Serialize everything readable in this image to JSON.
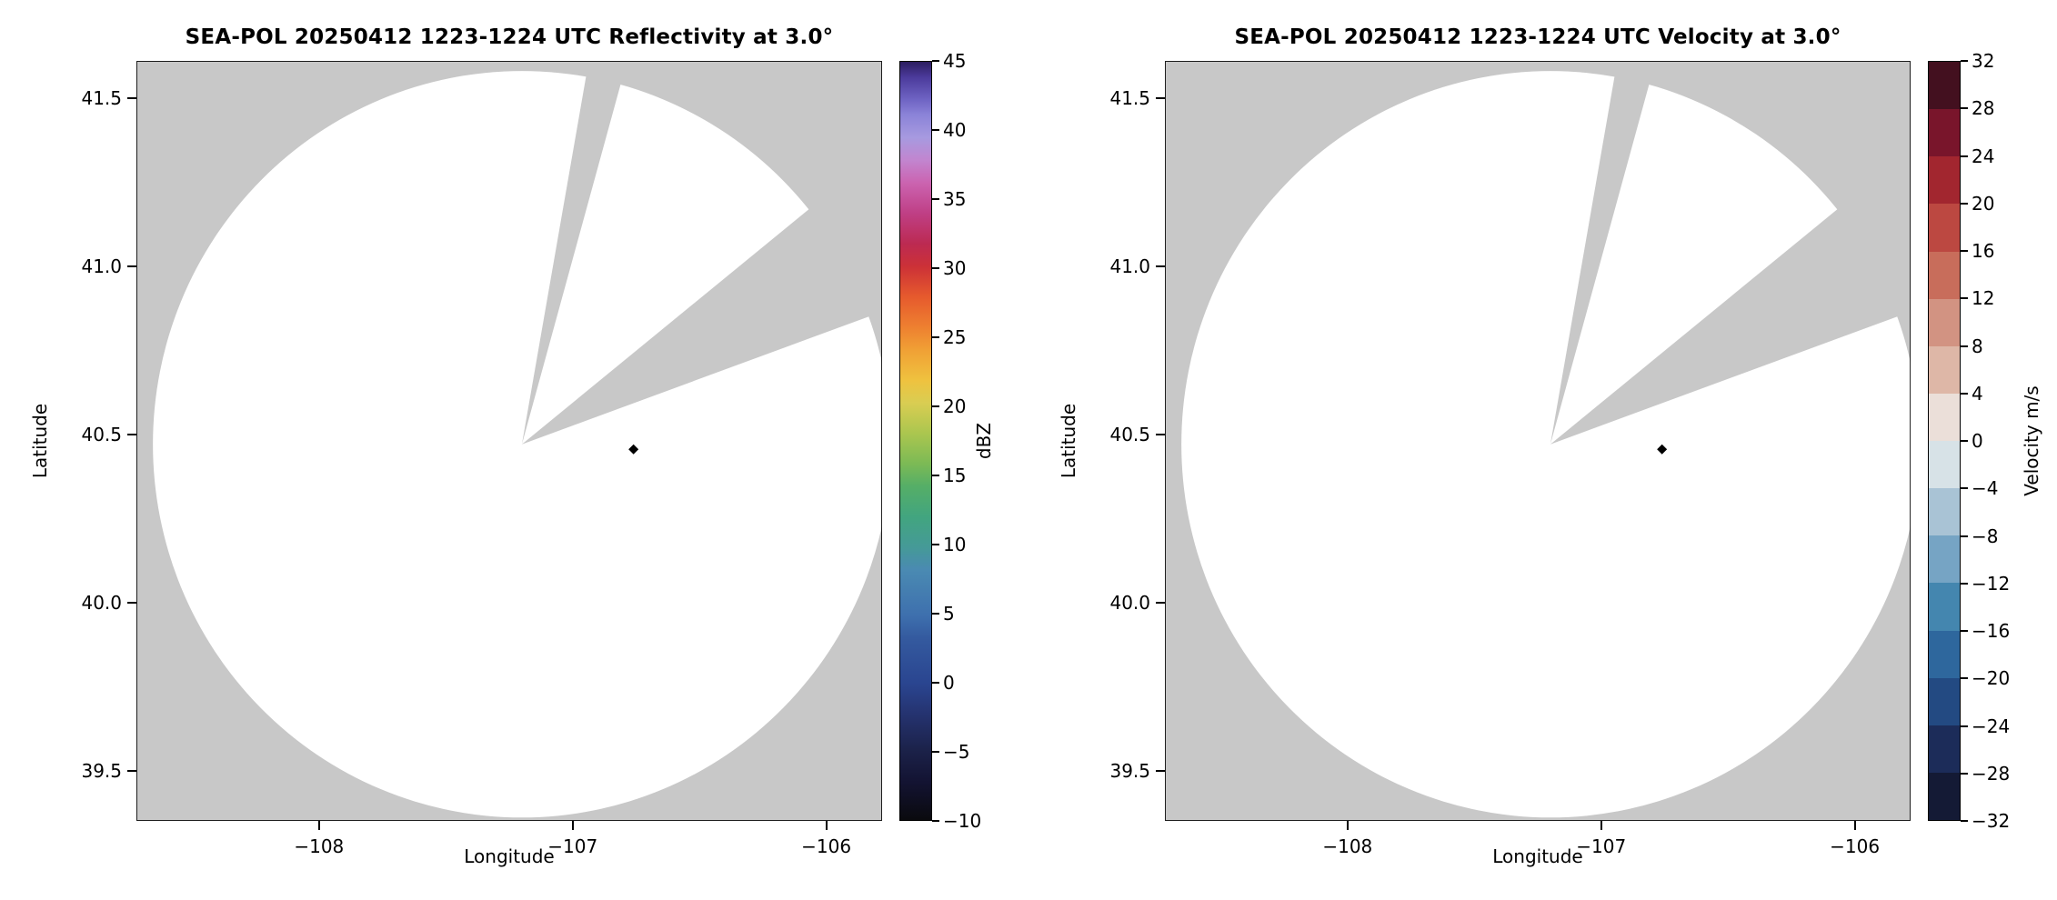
{
  "figure": {
    "background": "#ffffff",
    "description": "Two-panel radar PPI figure: reflectivity (left) and radial velocity (right)"
  },
  "chart_data": [
    {
      "id": "reflectivity",
      "type": "heatmap",
      "title": "SEA-POL 20250412 1223-1224 UTC Reflectivity at 3.0°",
      "xlabel": "Longitude",
      "ylabel": "Latitude",
      "xlim": [
        -108.72,
        -105.78
      ],
      "ylim": [
        39.35,
        41.61
      ],
      "xticks": [
        -108,
        -107,
        -106
      ],
      "xtick_labels": [
        "−108",
        "−107",
        "−106"
      ],
      "yticks": [
        41.5,
        41.0,
        40.5,
        40.0,
        39.5
      ],
      "ytick_labels": [
        "41.5",
        "41.0",
        "40.5",
        "40.0",
        "39.5"
      ],
      "grid": false,
      "radar": {
        "lon": -107.2,
        "lat": 40.47,
        "radius_lon_deg": 1.455,
        "radius_lat_deg": 1.11
      },
      "blocked_sectors_deg": [
        [
          10,
          15.5
        ],
        [
          51,
          70
        ]
      ],
      "marker": {
        "lon": -106.76,
        "lat": 40.455,
        "shape": "diamond",
        "color": "#000000"
      },
      "colors": {
        "masked": "#c8c8c8",
        "coverage": "#ffffff",
        "spine": "#000000"
      },
      "colorbar": {
        "label": "dBZ",
        "min": -10,
        "max": 45,
        "position": "right",
        "type": "continuous",
        "ticks": [
          45,
          40,
          35,
          30,
          25,
          20,
          15,
          10,
          5,
          0,
          -5,
          -10
        ],
        "tick_labels": [
          "45",
          "40",
          "35",
          "30",
          "25",
          "20",
          "15",
          "10",
          "5",
          "0",
          "−5",
          "−10"
        ],
        "stops": [
          {
            "pos": 0.0,
            "color": "#0a0a0e"
          },
          {
            "pos": 0.05,
            "color": "#131332"
          },
          {
            "pos": 0.09,
            "color": "#1b2148"
          },
          {
            "pos": 0.14,
            "color": "#253370"
          },
          {
            "pos": 0.18,
            "color": "#2a4590"
          },
          {
            "pos": 0.24,
            "color": "#345a9f"
          },
          {
            "pos": 0.27,
            "color": "#3e70ae"
          },
          {
            "pos": 0.33,
            "color": "#4a8ab2"
          },
          {
            "pos": 0.36,
            "color": "#459a97"
          },
          {
            "pos": 0.4,
            "color": "#42a57f"
          },
          {
            "pos": 0.44,
            "color": "#55ae67"
          },
          {
            "pos": 0.47,
            "color": "#7cba55"
          },
          {
            "pos": 0.51,
            "color": "#abc64f"
          },
          {
            "pos": 0.55,
            "color": "#d9cd52"
          },
          {
            "pos": 0.58,
            "color": "#efc23f"
          },
          {
            "pos": 0.62,
            "color": "#f0a035"
          },
          {
            "pos": 0.65,
            "color": "#ee8030"
          },
          {
            "pos": 0.69,
            "color": "#e65a2d"
          },
          {
            "pos": 0.73,
            "color": "#cc3137"
          },
          {
            "pos": 0.76,
            "color": "#bc2a52"
          },
          {
            "pos": 0.8,
            "color": "#bf3f85"
          },
          {
            "pos": 0.84,
            "color": "#cb63b0"
          },
          {
            "pos": 0.87,
            "color": "#c285cf"
          },
          {
            "pos": 0.9,
            "color": "#a79ae0"
          },
          {
            "pos": 0.93,
            "color": "#8b83d8"
          },
          {
            "pos": 0.95,
            "color": "#6f64c4"
          },
          {
            "pos": 0.98,
            "color": "#4b3a9b"
          },
          {
            "pos": 1.0,
            "color": "#2c1d60"
          }
        ]
      },
      "echoes": [],
      "note": "No reflectivity echoes above threshold; scan coverage circle rendered white, masked background and two blocked azimuth sectors rendered gray; black diamond marks a site at approx (-106.76, 40.455)."
    },
    {
      "id": "velocity",
      "type": "heatmap",
      "title": "SEA-POL 20250412 1223-1224 UTC Velocity at 3.0°",
      "xlabel": "Longitude",
      "ylabel": "Latitude",
      "xlim": [
        -108.72,
        -105.78
      ],
      "ylim": [
        39.35,
        41.61
      ],
      "xticks": [
        -108,
        -107,
        -106
      ],
      "xtick_labels": [
        "−108",
        "−107",
        "−106"
      ],
      "yticks": [
        41.5,
        41.0,
        40.5,
        40.0,
        39.5
      ],
      "ytick_labels": [
        "41.5",
        "41.0",
        "40.5",
        "40.0",
        "39.5"
      ],
      "grid": false,
      "radar": {
        "lon": -107.2,
        "lat": 40.47,
        "radius_lon_deg": 1.455,
        "radius_lat_deg": 1.11
      },
      "blocked_sectors_deg": [
        [
          10,
          15.5
        ],
        [
          51,
          70
        ]
      ],
      "marker": {
        "lon": -106.76,
        "lat": 40.455,
        "shape": "diamond",
        "color": "#000000"
      },
      "colors": {
        "masked": "#c8c8c8",
        "coverage": "#ffffff",
        "spine": "#000000"
      },
      "colorbar": {
        "label": "Velocity m/s",
        "min": -32,
        "max": 32,
        "position": "right",
        "type": "discrete",
        "ticks": [
          32,
          28,
          24,
          20,
          16,
          12,
          8,
          4,
          0,
          -4,
          -8,
          -12,
          -16,
          -20,
          -24,
          -28,
          -32
        ],
        "tick_labels": [
          "32",
          "28",
          "24",
          "20",
          "16",
          "12",
          "8",
          "4",
          "0",
          "−4",
          "−8",
          "−12",
          "−16",
          "−20",
          "−24",
          "−28",
          "−32"
        ],
        "segment_colors": [
          "#141a35",
          "#1c2c59",
          "#234a82",
          "#2e679d",
          "#4486af",
          "#76a4c4",
          "#a9c3d5",
          "#d7e2e7",
          "#ebdfd9",
          "#deb7a7",
          "#d29382",
          "#c86d5b",
          "#bc4841",
          "#a2262f",
          "#79152b",
          "#43101f"
        ]
      },
      "echoes": [],
      "note": "No velocity data above threshold; scan coverage circle rendered white, masked background and two blocked azimuth sectors rendered gray; black diamond marks a site at approx (-106.76, 40.455)."
    }
  ]
}
